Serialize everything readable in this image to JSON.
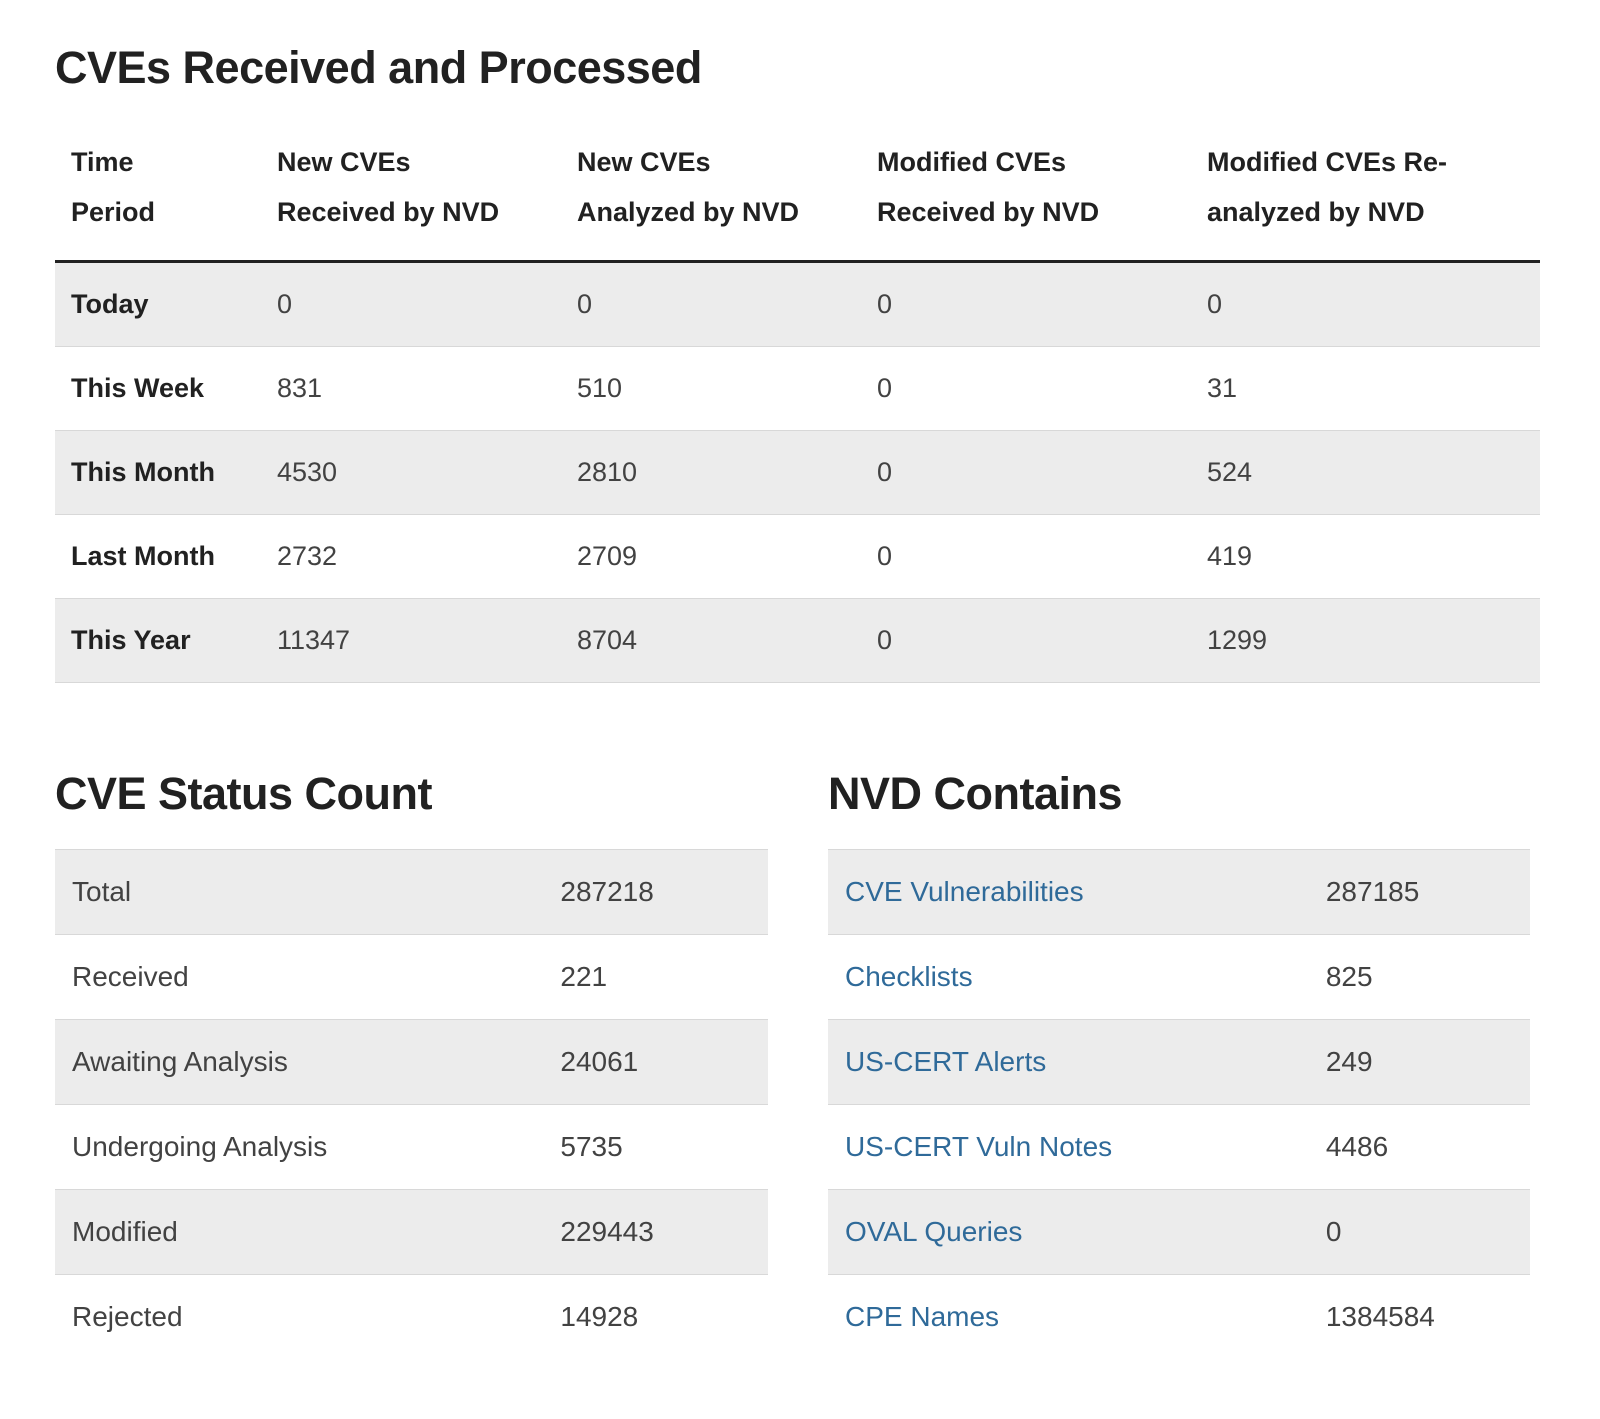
{
  "colors": {
    "heading": "#212121",
    "body_text": "#424242",
    "link": "#2f6a99",
    "row_stripe": "#ececec",
    "row_border": "#d8d8d8",
    "header_rule": "#212121"
  },
  "received_processed": {
    "title": "CVEs Received and Processed",
    "columns": [
      "Time Period",
      "New CVEs Received by NVD",
      "New CVEs Analyzed by NVD",
      "Modified CVEs Received by NVD",
      "Modified CVEs Re-analyzed by NVD"
    ],
    "rows": [
      {
        "period": "Today",
        "values": [
          "0",
          "0",
          "0",
          "0"
        ]
      },
      {
        "period": "This Week",
        "values": [
          "831",
          "510",
          "0",
          "31"
        ]
      },
      {
        "period": "This Month",
        "values": [
          "4530",
          "2810",
          "0",
          "524"
        ]
      },
      {
        "period": "Last Month",
        "values": [
          "2732",
          "2709",
          "0",
          "419"
        ]
      },
      {
        "period": "This Year",
        "values": [
          "11347",
          "8704",
          "0",
          "1299"
        ]
      }
    ]
  },
  "status_count": {
    "title": "CVE Status Count",
    "rows": [
      {
        "label": "Total",
        "value": "287218"
      },
      {
        "label": "Received",
        "value": "221"
      },
      {
        "label": "Awaiting Analysis",
        "value": "24061"
      },
      {
        "label": "Undergoing Analysis",
        "value": "5735"
      },
      {
        "label": "Modified",
        "value": "229443"
      },
      {
        "label": "Rejected",
        "value": "14928"
      }
    ]
  },
  "nvd_contains": {
    "title": "NVD Contains",
    "rows": [
      {
        "label": "CVE Vulnerabilities",
        "value": "287185"
      },
      {
        "label": "Checklists",
        "value": "825"
      },
      {
        "label": "US-CERT Alerts",
        "value": "249"
      },
      {
        "label": "US-CERT Vuln Notes",
        "value": "4486"
      },
      {
        "label": "OVAL Queries",
        "value": "0"
      },
      {
        "label": "CPE Names",
        "value": "1384584"
      }
    ]
  }
}
